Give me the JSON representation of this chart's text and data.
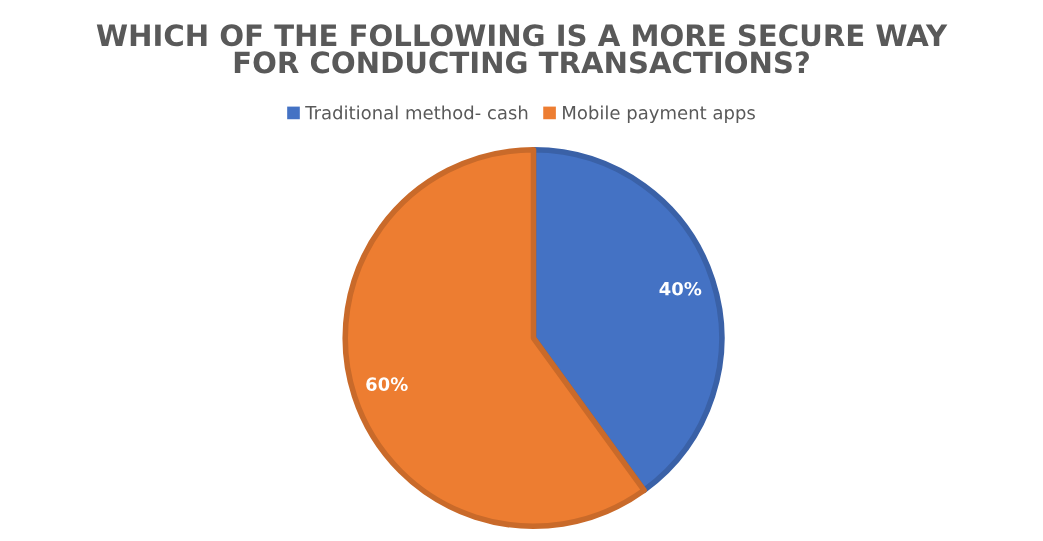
{
  "chart_data": {
    "type": "pie",
    "title": "WHICH OF THE FOLLOWING IS A MORE SECURE WAY\nFOR CONDUCTING TRANSACTIONS?",
    "categories": [
      "Traditional method- cash",
      "Mobile payment apps"
    ],
    "values": [
      40,
      60
    ],
    "colors": [
      "#4472c4",
      "#ed7d31"
    ],
    "value_labels": [
      "40%",
      "60%"
    ],
    "legend": "top"
  }
}
